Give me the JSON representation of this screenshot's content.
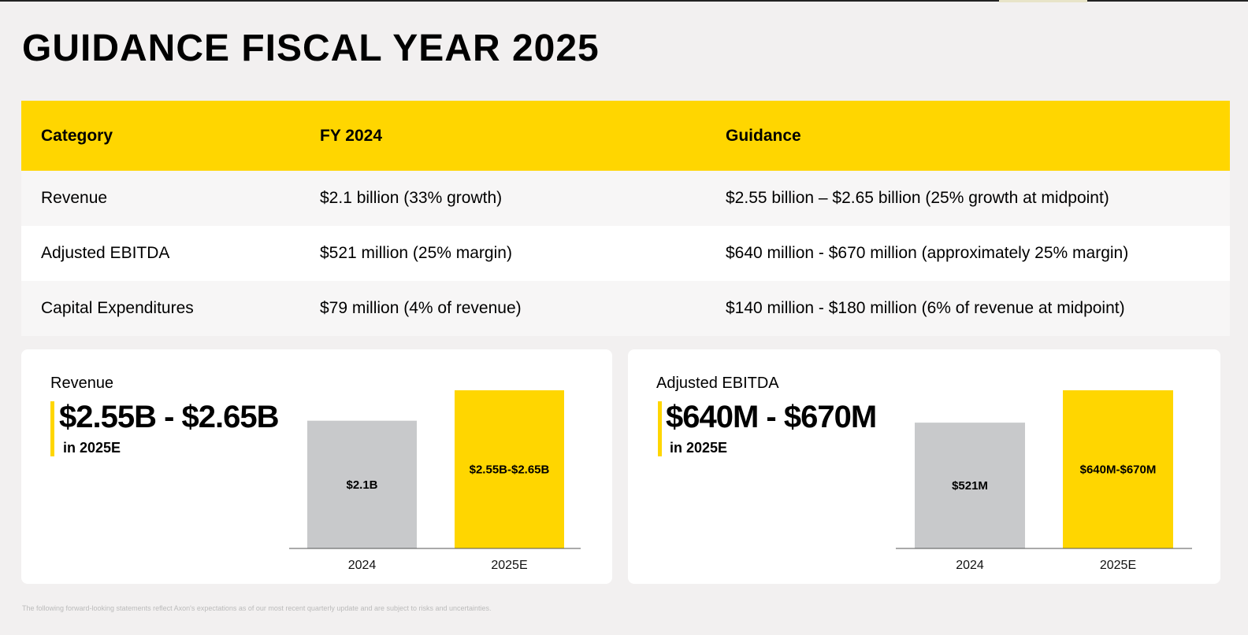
{
  "title": "GUIDANCE FISCAL YEAR 2025",
  "colors": {
    "accent": "#ffd600",
    "muted_bar": "#c8c9cb",
    "background": "#f2f0f0"
  },
  "table": {
    "headers": [
      "Category",
      "FY 2024",
      "Guidance"
    ],
    "rows": [
      [
        "Revenue",
        "$2.1 billion (33% growth)",
        "$2.55 billion – $2.65 billion (25% growth at midpoint)"
      ],
      [
        "Adjusted EBITDA",
        "$521 million (25% margin)",
        "$640 million - $670 million (approximately 25% margin)"
      ],
      [
        "Capital Expenditures",
        "$79 million (4% of revenue)",
        "$140 million - $180 million (6% of revenue at midpoint)"
      ]
    ]
  },
  "revenue_card": {
    "label": "Revenue",
    "headline": "$2.55B  - $2.65B",
    "sub": "in 2025E"
  },
  "ebitda_card": {
    "label": "Adjusted EBITDA",
    "headline": "$640M - $670M",
    "sub": "in 2025E"
  },
  "footnote": "The following forward-looking statements reflect Axon's expectations as of our most recent quarterly update and are subject to risks and uncertainties.",
  "chart_data": [
    {
      "type": "bar",
      "title": "",
      "categories": [
        "2024",
        "2025E"
      ],
      "values": [
        2.1,
        2.6
      ],
      "data_labels": [
        "$2.1B",
        "$2.55B-$2.65B"
      ],
      "bar_colors": [
        "#c8c9cb",
        "#ffd600"
      ],
      "ylim": [
        0,
        2.6
      ],
      "grid": false
    },
    {
      "type": "bar",
      "title": "",
      "categories": [
        "2024",
        "2025E"
      ],
      "values": [
        521,
        655
      ],
      "data_labels": [
        "$521M",
        "$640M-$670M"
      ],
      "bar_colors": [
        "#c8c9cb",
        "#ffd600"
      ],
      "ylim": [
        0,
        655
      ],
      "grid": false
    }
  ]
}
